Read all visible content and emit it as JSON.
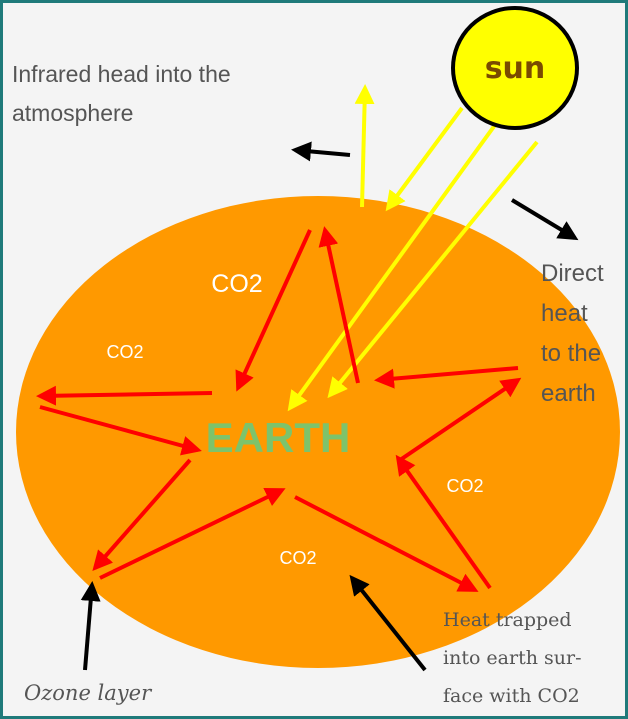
{
  "labels": {
    "infrared": [
      "Infrared head into the",
      "atmosphere"
    ],
    "sun": "sun",
    "earth": "EARTH",
    "co2": [
      "CO2",
      "CO2",
      "CO2",
      "CO2"
    ],
    "direct_heat": [
      "Direct",
      "heat",
      "to the",
      "earth"
    ],
    "heat_trapped": [
      "Heat trapped",
      "into earth sur-",
      "face with CO2"
    ],
    "ozone": "Ozone layer"
  }
}
